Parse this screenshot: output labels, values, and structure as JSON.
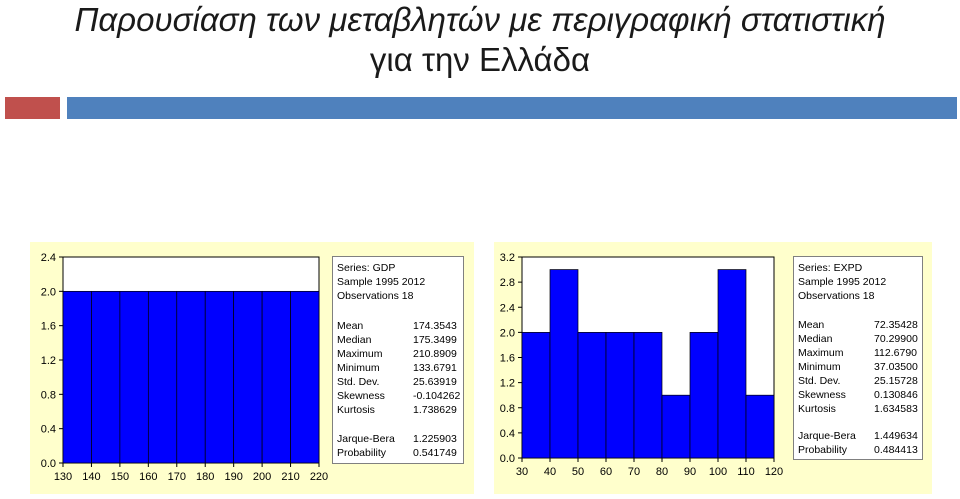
{
  "slide": {
    "title_line1": "Παρουσίαση των μεταβλητών με περιγραφική στατιστική",
    "title_line2": "για την Ελλάδα"
  },
  "colors": {
    "accent_red": "#c0504d",
    "accent_blue": "#4f81bd",
    "bar_fill": "#0000ff",
    "panel_bg": "#ffffcc"
  },
  "stats_gdp": {
    "series": "Series: GDP",
    "sample": "Sample 1995 2012",
    "observations": "Observations 18",
    "rows": [
      {
        "k": "Mean",
        "v": "174.3543"
      },
      {
        "k": "Median",
        "v": "175.3499"
      },
      {
        "k": "Maximum",
        "v": "210.8909"
      },
      {
        "k": "Minimum",
        "v": "133.6791"
      },
      {
        "k": "Std. Dev.",
        "v": "25.63919"
      },
      {
        "k": "Skewness",
        "v": "-0.104262"
      },
      {
        "k": "Kurtosis",
        "v": "1.738629"
      },
      {
        "k": "Jarque-Bera",
        "v": "1.225903"
      },
      {
        "k": "Probability",
        "v": "0.541749"
      }
    ]
  },
  "stats_expd": {
    "series": "Series: EXPD",
    "sample": "Sample 1995 2012",
    "observations": "Observations 18",
    "rows": [
      {
        "k": "Mean",
        "v": "72.35428"
      },
      {
        "k": "Median",
        "v": "70.29900"
      },
      {
        "k": "Maximum",
        "v": "112.6790"
      },
      {
        "k": "Minimum",
        "v": "37.03500"
      },
      {
        "k": "Std. Dev.",
        "v": "25.15728"
      },
      {
        "k": "Skewness",
        "v": "0.130846"
      },
      {
        "k": "Kurtosis",
        "v": "1.634583"
      },
      {
        "k": "Jarque-Bera",
        "v": "1.449634"
      },
      {
        "k": "Probability",
        "v": "0.484413"
      }
    ]
  },
  "chart_data": [
    {
      "type": "bar",
      "bin_edges": [
        130,
        140,
        150,
        160,
        170,
        180,
        190,
        200,
        210,
        220
      ],
      "values": [
        2,
        2,
        2,
        2,
        2,
        2,
        2,
        2,
        2
      ],
      "xticks": [
        130,
        140,
        150,
        160,
        170,
        180,
        190,
        200,
        210,
        220
      ],
      "yticks": [
        0.0,
        0.4,
        0.8,
        1.2,
        1.6,
        2.0,
        2.4
      ],
      "ytick_labels": [
        "0.0",
        "0.4",
        "0.8",
        "1.2",
        "1.6",
        "2.0",
        "2.4"
      ],
      "xlim": [
        130,
        220
      ],
      "ylim": [
        0,
        2.4
      ],
      "grid": false
    },
    {
      "type": "bar",
      "bin_edges": [
        30,
        40,
        50,
        60,
        70,
        80,
        90,
        100,
        110,
        120
      ],
      "values": [
        2,
        3,
        2,
        2,
        2,
        1,
        2,
        3,
        1
      ],
      "xticks": [
        30,
        40,
        50,
        60,
        70,
        80,
        90,
        100,
        110,
        120
      ],
      "yticks": [
        0.0,
        0.4,
        0.8,
        1.2,
        1.6,
        2.0,
        2.4,
        2.8,
        3.2
      ],
      "ytick_labels": [
        "0.0",
        "0.4",
        "0.8",
        "1.2",
        "1.6",
        "2.0",
        "2.4",
        "2.8",
        "3.2"
      ],
      "xlim": [
        30,
        120
      ],
      "ylim": [
        0,
        3.2
      ],
      "grid": false
    }
  ]
}
